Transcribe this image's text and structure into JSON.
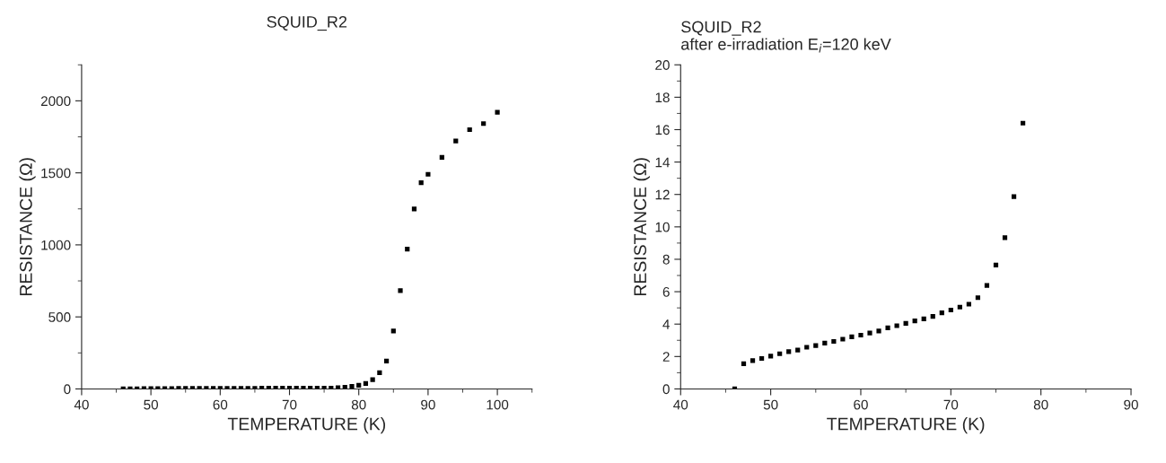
{
  "chart_data": [
    {
      "type": "scatter",
      "title": "SQUID_R2",
      "xlabel": "TEMPERATURE (K)",
      "ylabel": "RESISTANCE (Ω)",
      "marker": "square",
      "grid": false,
      "x": [
        46,
        47,
        48,
        49,
        50,
        51,
        52,
        53,
        54,
        55,
        56,
        57,
        58,
        59,
        60,
        61,
        62,
        63,
        64,
        65,
        66,
        67,
        68,
        69,
        70,
        71,
        72,
        73,
        74,
        75,
        76,
        77,
        78,
        79,
        80,
        81,
        82,
        83,
        84,
        85,
        86,
        87,
        88,
        89,
        90,
        92,
        94,
        96,
        98,
        100
      ],
      "series": [
        {
          "color": "#000000",
          "values": [
            1,
            1,
            1,
            2,
            2,
            2,
            2,
            2,
            3,
            3,
            3,
            3,
            3,
            3,
            4,
            4,
            4,
            4,
            4,
            4,
            5,
            5,
            5,
            5,
            5,
            5,
            5,
            6,
            6,
            6,
            6,
            9,
            11,
            17,
            25,
            38,
            64,
            112,
            193,
            402,
            682,
            970,
            1249,
            1431,
            1490,
            1607,
            1721,
            1800,
            1842,
            1920
          ]
        }
      ],
      "xlim": [
        40,
        105
      ],
      "xticks": [
        40,
        {
          "value": 45,
          "label": null
        },
        50,
        {
          "value": 55,
          "label": null
        },
        60,
        {
          "value": 65,
          "label": null
        },
        70,
        {
          "value": 75,
          "label": null
        },
        80,
        {
          "value": 85,
          "label": null
        },
        90,
        {
          "value": 95,
          "label": null
        },
        100,
        {
          "value": 105,
          "label": null
        }
      ],
      "ylim": [
        0,
        2250
      ],
      "yticks": [
        0,
        {
          "value": 250,
          "label": null
        },
        500,
        {
          "value": 750,
          "label": null
        },
        1000,
        {
          "value": 1250,
          "label": null
        },
        1500,
        {
          "value": 1750,
          "label": null
        },
        2000,
        {
          "value": 2250,
          "label": null
        }
      ]
    },
    {
      "type": "scatter",
      "title": "SQUID_R2",
      "subtitle": "after e-irradiation E$_{i}$=120 keV",
      "xlabel": "TEMPERATURE (K)",
      "ylabel": "RESISTANCE (Ω)",
      "marker": "square",
      "grid": false,
      "x": [
        46,
        47,
        48,
        49,
        50,
        51,
        52,
        53,
        54,
        55,
        56,
        57,
        58,
        59,
        60,
        61,
        62,
        63,
        64,
        65,
        66,
        67,
        68,
        69,
        70,
        71,
        72,
        73,
        74,
        75,
        76,
        77,
        78
      ],
      "series": [
        {
          "color": "#000000",
          "values": [
            0,
            1.55,
            1.75,
            1.88,
            2.02,
            2.17,
            2.3,
            2.4,
            2.57,
            2.67,
            2.83,
            2.93,
            3.07,
            3.22,
            3.32,
            3.45,
            3.58,
            3.77,
            3.9,
            4.05,
            4.2,
            4.32,
            4.48,
            4.7,
            4.87,
            5.05,
            5.23,
            5.63,
            6.38,
            7.65,
            9.33,
            11.87,
            16.4
          ]
        }
      ],
      "xlim": [
        40,
        90
      ],
      "xticks": [
        40,
        {
          "value": 45,
          "label": null
        },
        50,
        {
          "value": 55,
          "label": null
        },
        60,
        {
          "value": 65,
          "label": null
        },
        70,
        {
          "value": 75,
          "label": null
        },
        80,
        {
          "value": 85,
          "label": null
        },
        90
      ],
      "ylim": [
        0,
        20
      ],
      "yticks": [
        0,
        {
          "value": 1,
          "label": null
        },
        2,
        {
          "value": 3,
          "label": null
        },
        4,
        {
          "value": 5,
          "label": null
        },
        6,
        {
          "value": 7,
          "label": null
        },
        8,
        {
          "value": 9,
          "label": null
        },
        10,
        {
          "value": 11,
          "label": null
        },
        12,
        {
          "value": 13,
          "label": null
        },
        14,
        {
          "value": 15,
          "label": null
        },
        16,
        {
          "value": 17,
          "label": null
        },
        18,
        {
          "value": 19,
          "label": null
        },
        20
      ]
    }
  ]
}
